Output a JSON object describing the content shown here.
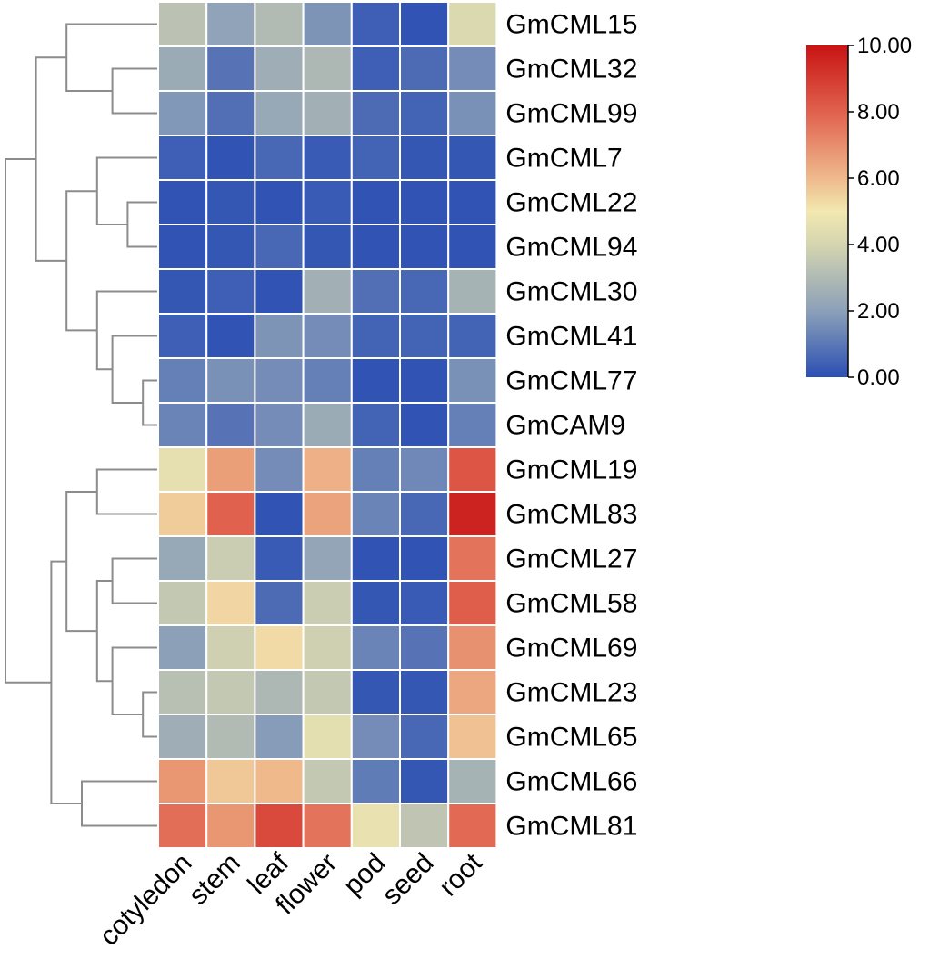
{
  "chart_data": {
    "type": "heatmap",
    "title": "",
    "rows": [
      "GmCML15",
      "GmCML32",
      "GmCML99",
      "GmCML7",
      "GmCML22",
      "GmCML94",
      "GmCML30",
      "GmCML41",
      "GmCML77",
      "GmCAM9",
      "GmCML19",
      "GmCML83",
      "GmCML27",
      "GmCML58",
      "GmCML69",
      "GmCML23",
      "GmCML65",
      "GmCML66",
      "GmCML81"
    ],
    "columns": [
      "cotyledon",
      "stem",
      "leaf",
      "flower",
      "pod",
      "seed",
      "root"
    ],
    "values": [
      [
        3.3,
        2.1,
        3.0,
        1.7,
        0.4,
        0.1,
        4.2
      ],
      [
        2.4,
        0.9,
        2.5,
        2.9,
        0.4,
        0.7,
        1.5
      ],
      [
        1.8,
        0.8,
        2.3,
        2.6,
        0.7,
        0.5,
        1.6
      ],
      [
        0.4,
        0.1,
        0.6,
        0.3,
        0.5,
        0.2,
        0.2
      ],
      [
        0.1,
        0.2,
        0.1,
        0.3,
        0.1,
        0.1,
        0.1
      ],
      [
        0.1,
        0.2,
        0.6,
        0.2,
        0.1,
        0.1,
        0.1
      ],
      [
        0.2,
        0.4,
        0.1,
        2.6,
        0.8,
        0.6,
        2.7
      ],
      [
        0.4,
        0.1,
        1.7,
        1.5,
        0.5,
        0.5,
        0.5
      ],
      [
        1.2,
        1.6,
        1.5,
        1.2,
        0.1,
        0.1,
        1.6
      ],
      [
        1.3,
        0.9,
        1.5,
        2.4,
        0.5,
        0.1,
        1.2
      ],
      [
        4.6,
        6.6,
        1.5,
        6.2,
        1.2,
        1.4,
        8.3
      ],
      [
        5.6,
        8.0,
        0.1,
        6.5,
        1.3,
        0.6,
        9.6
      ],
      [
        2.3,
        3.7,
        0.3,
        2.2,
        0.1,
        0.1,
        7.6
      ],
      [
        3.5,
        5.4,
        0.7,
        3.7,
        0.2,
        0.3,
        8.1
      ],
      [
        2.0,
        3.8,
        5.3,
        3.8,
        1.3,
        0.9,
        6.9
      ],
      [
        3.2,
        3.5,
        2.9,
        3.5,
        0.2,
        0.2,
        6.4
      ],
      [
        2.5,
        3.0,
        1.9,
        4.5,
        1.5,
        0.6,
        5.8
      ],
      [
        6.8,
        5.7,
        6.0,
        3.5,
        1.1,
        0.2,
        2.7
      ],
      [
        7.7,
        6.8,
        8.6,
        7.6,
        4.7,
        3.4,
        7.8
      ]
    ],
    "color_scale": {
      "min": 0,
      "max": 10,
      "stops": [
        {
          "value": 0,
          "color": "#2b4fb4"
        },
        {
          "value": 2,
          "color": "#8ca0b8"
        },
        {
          "value": 4,
          "color": "#d5d5b0"
        },
        {
          "value": 5,
          "color": "#f2e8b0"
        },
        {
          "value": 6,
          "color": "#efb98c"
        },
        {
          "value": 8,
          "color": "#e0614e"
        },
        {
          "value": 10,
          "color": "#c81414"
        }
      ]
    },
    "legend": {
      "placement": "top-right",
      "ticks": [
        "0.00",
        "2.00",
        "4.00",
        "6.00",
        "8.00",
        "10.00"
      ],
      "tick_values": [
        0,
        2,
        4,
        6,
        8,
        10
      ]
    },
    "row_dendrogram": {
      "leaf_order": [
        "GmCML15",
        "GmCML32",
        "GmCML99",
        "GmCML7",
        "GmCML22",
        "GmCML94",
        "GmCML30",
        "GmCML41",
        "GmCML77",
        "GmCAM9",
        "GmCML19",
        "GmCML83",
        "GmCML27",
        "GmCML58",
        "GmCML69",
        "GmCML23",
        "GmCML65",
        "GmCML66",
        "GmCML81"
      ],
      "merges": [
        {
          "a": "L1",
          "b": "L2",
          "height": 1.5
        },
        {
          "a": "L0",
          "b": "N0",
          "height": 3.0
        },
        {
          "a": "L4",
          "b": "L5",
          "height": 1.0
        },
        {
          "a": "L3",
          "b": "N2",
          "height": 2.0
        },
        {
          "a": "L8",
          "b": "L9",
          "height": 0.5
        },
        {
          "a": "L7",
          "b": "N4",
          "height": 1.5
        },
        {
          "a": "L6",
          "b": "N5",
          "height": 2.0
        },
        {
          "a": "N3",
          "b": "N6",
          "height": 3.0
        },
        {
          "a": "N1",
          "b": "N7",
          "height": 4.0
        },
        {
          "a": "L10",
          "b": "L11",
          "height": 2.0
        },
        {
          "a": "L12",
          "b": "L13",
          "height": 1.5
        },
        {
          "a": "L15",
          "b": "L16",
          "height": 0.5
        },
        {
          "a": "L14",
          "b": "N11",
          "height": 1.5
        },
        {
          "a": "N10",
          "b": "N12",
          "height": 2.0
        },
        {
          "a": "N9",
          "b": "N13",
          "height": 3.0
        },
        {
          "a": "L17",
          "b": "L18",
          "height": 2.5
        },
        {
          "a": "N14",
          "b": "N15",
          "height": 3.5
        },
        {
          "a": "N8",
          "b": "N16",
          "height": 5.0
        }
      ]
    }
  }
}
